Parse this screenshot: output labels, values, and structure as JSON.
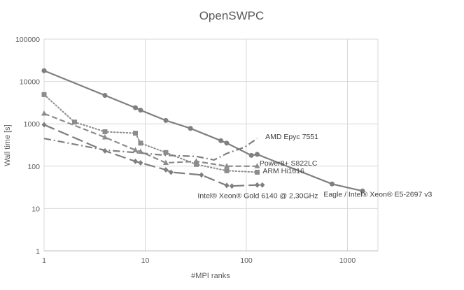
{
  "chart_data": {
    "type": "line",
    "title": "OpenSWPC",
    "xlabel": "#MPI ranks",
    "ylabel": "Wall time [s]",
    "x_scale": "log",
    "y_scale": "log",
    "xlim": [
      1,
      2000
    ],
    "ylim": [
      1,
      100000
    ],
    "grid": true,
    "x_ticks": [
      "1",
      "10",
      "100",
      "1000"
    ],
    "y_ticks": [
      "1",
      "10",
      "100",
      "1000",
      "10000",
      "100000"
    ],
    "series": [
      {
        "name": "Eagle / Intel® Xeon® E5-2697 v3",
        "color": "#7f7f7f",
        "dash": "solid",
        "marker": "circle",
        "x": [
          1,
          4,
          8,
          9,
          16,
          28,
          56,
          64,
          112,
          128,
          704,
          1408
        ],
        "y": [
          18000,
          4700,
          2400,
          2100,
          1200,
          780,
          400,
          350,
          180,
          190,
          38,
          26
        ]
      },
      {
        "name": "ARM Hi1616",
        "color": "#8c8c8c",
        "dash": "dot",
        "marker": "square",
        "x": [
          1,
          2,
          4,
          8,
          9,
          16,
          32,
          64,
          128
        ],
        "y": [
          4900,
          1100,
          650,
          600,
          350,
          210,
          110,
          78,
          72
        ]
      },
      {
        "name": "Power8+ S822LC",
        "color": "#8c8c8c",
        "dash": "dash",
        "marker": "triangle",
        "x": [
          1,
          4,
          8,
          9,
          16,
          32,
          64,
          128
        ],
        "y": [
          1750,
          480,
          240,
          220,
          120,
          130,
          100,
          100
        ]
      },
      {
        "name": "Intel® Xeon® Gold 6140 @ 2,30GHz",
        "color": "#7f7f7f",
        "dash": "longdash",
        "marker": "diamond",
        "x": [
          1,
          4,
          8,
          9,
          16,
          18,
          36,
          64,
          72,
          128,
          144
        ],
        "y": [
          950,
          230,
          130,
          120,
          82,
          72,
          62,
          35,
          34,
          36,
          36
        ]
      },
      {
        "name": "AMD Epyc 7551",
        "color": "#7f7f7f",
        "dash": "dashdot",
        "marker": "none",
        "x": [
          1,
          4,
          8,
          16,
          32,
          48,
          64,
          96,
          128
        ],
        "y": [
          450,
          240,
          210,
          180,
          170,
          140,
          200,
          280,
          450
        ]
      }
    ]
  }
}
